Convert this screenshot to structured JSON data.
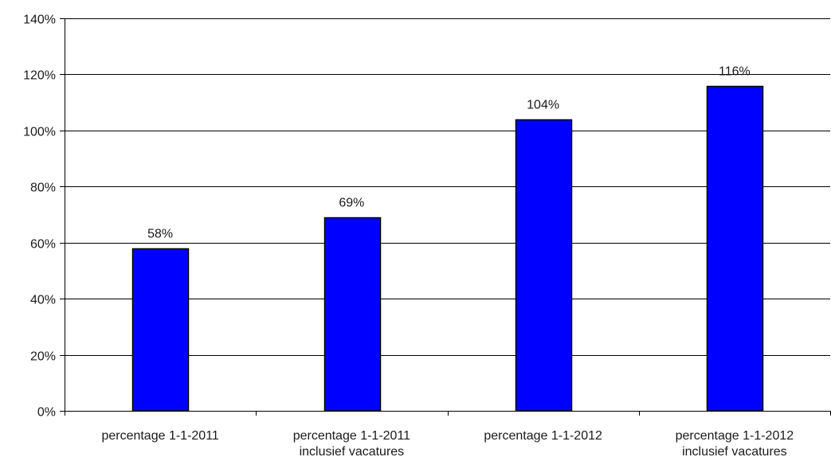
{
  "chart_data": {
    "type": "bar",
    "title": "",
    "xlabel": "",
    "ylabel": "",
    "categories": [
      [
        "percentage 1-1-2011"
      ],
      [
        "percentage 1-1-2011",
        "inclusief vacatures"
      ],
      [
        "percentage 1-1-2012"
      ],
      [
        "percentage 1-1-2012",
        "inclusief vacatures"
      ]
    ],
    "values": [
      58,
      69,
      104,
      116
    ],
    "data_labels": [
      "58%",
      "69%",
      "104%",
      "116%"
    ],
    "ylim": [
      0,
      140
    ],
    "yticks": [
      0,
      20,
      40,
      60,
      80,
      100,
      120,
      140
    ],
    "ytick_labels": [
      "0%",
      "20%",
      "40%",
      "60%",
      "80%",
      "100%",
      "120%",
      "140%"
    ],
    "grid": true,
    "legend": "none",
    "colors": {
      "bar_fill": "#0000ff",
      "bar_stroke": "#000000",
      "grid": "#000000",
      "axis": "#000000"
    }
  }
}
